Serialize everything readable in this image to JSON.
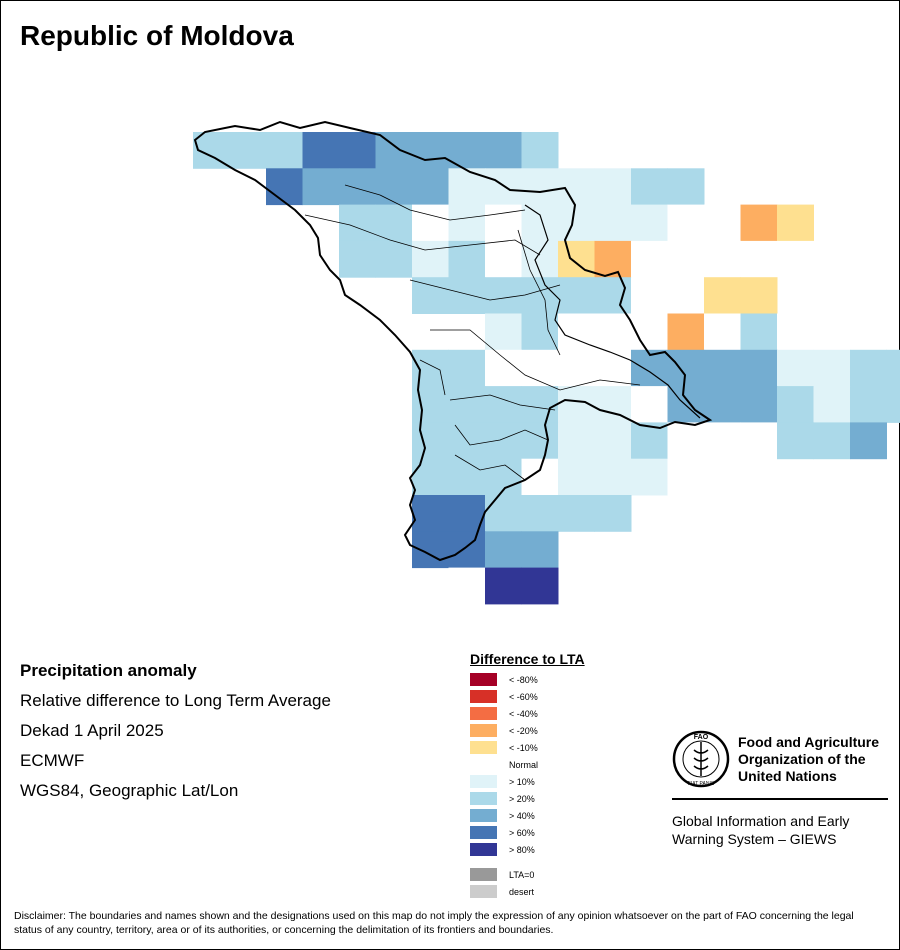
{
  "title": "Republic of Moldova",
  "info": {
    "product": "Precipitation anomaly",
    "description": "Relative difference to Long Term Average",
    "period": "Dekad 1 April 2025",
    "source": "ECMWF",
    "projection": "WGS84, Geographic Lat/Lon"
  },
  "legend": {
    "title": "Difference to LTA",
    "classes": [
      {
        "label": "< -80%",
        "color": "#a50026"
      },
      {
        "label": "< -60%",
        "color": "#d73027"
      },
      {
        "label": "< -40%",
        "color": "#f46d43"
      },
      {
        "label": "< -20%",
        "color": "#fdae61"
      },
      {
        "label": "< -10%",
        "color": "#fee090"
      },
      {
        "label": "Normal",
        "color": "#ffffff"
      },
      {
        "label": "> 10%",
        "color": "#e0f3f8"
      },
      {
        "label": "> 20%",
        "color": "#abd9e9"
      },
      {
        "label": "> 40%",
        "color": "#74add1"
      },
      {
        "label": "> 60%",
        "color": "#4575b4"
      },
      {
        "label": "> 80%",
        "color": "#313695"
      }
    ],
    "extra": [
      {
        "label": "LTA=0",
        "color": "#999999"
      },
      {
        "label": "desert",
        "color": "#cccccc"
      }
    ]
  },
  "grid_legend_index": {
    "n": "Normal",
    "l": "> 10%",
    "b": "> 20%",
    "m": "> 40%",
    "d": "> 60%",
    "v": "> 80%",
    "y": "< -10%",
    "o": "< -20%"
  },
  "grid_rows": [
    "bbbddmmmmb..........",
    "..dmmmmlllllbb......",
    "....bbnlnllllnnoy...",
    "....bblbnlyonnnnn...",
    "......bbbbbbnnyy....",
    "........lbnnnonbn...",
    "......bbnnnnmmmmllbb",
    "......bbbbllnmmmblbb",
    "......bbbbllbnnnbbm.",
    "......bbbnllln......",
    "......ddbbbb........",
    "......ddmm..........",
    ".......nvv.........."
  ],
  "fao": {
    "org_line1": "Food and Agriculture",
    "org_line2": "Organization of the",
    "org_line3": "United Nations",
    "system_line1": "Global Information and Early",
    "system_line2": "Warning System – GIEWS",
    "emblem_text": "FAO",
    "emblem_motto": "FIAT PANIS"
  },
  "disclaimer": "Disclaimer: The boundaries and names shown and the designations used on this map do not imply the expression of any opinion whatsoever on the part of FAO concerning the legal status of any country, territory, area or of its authorities, or concerning the delimitation of its frontiers and boundaries."
}
